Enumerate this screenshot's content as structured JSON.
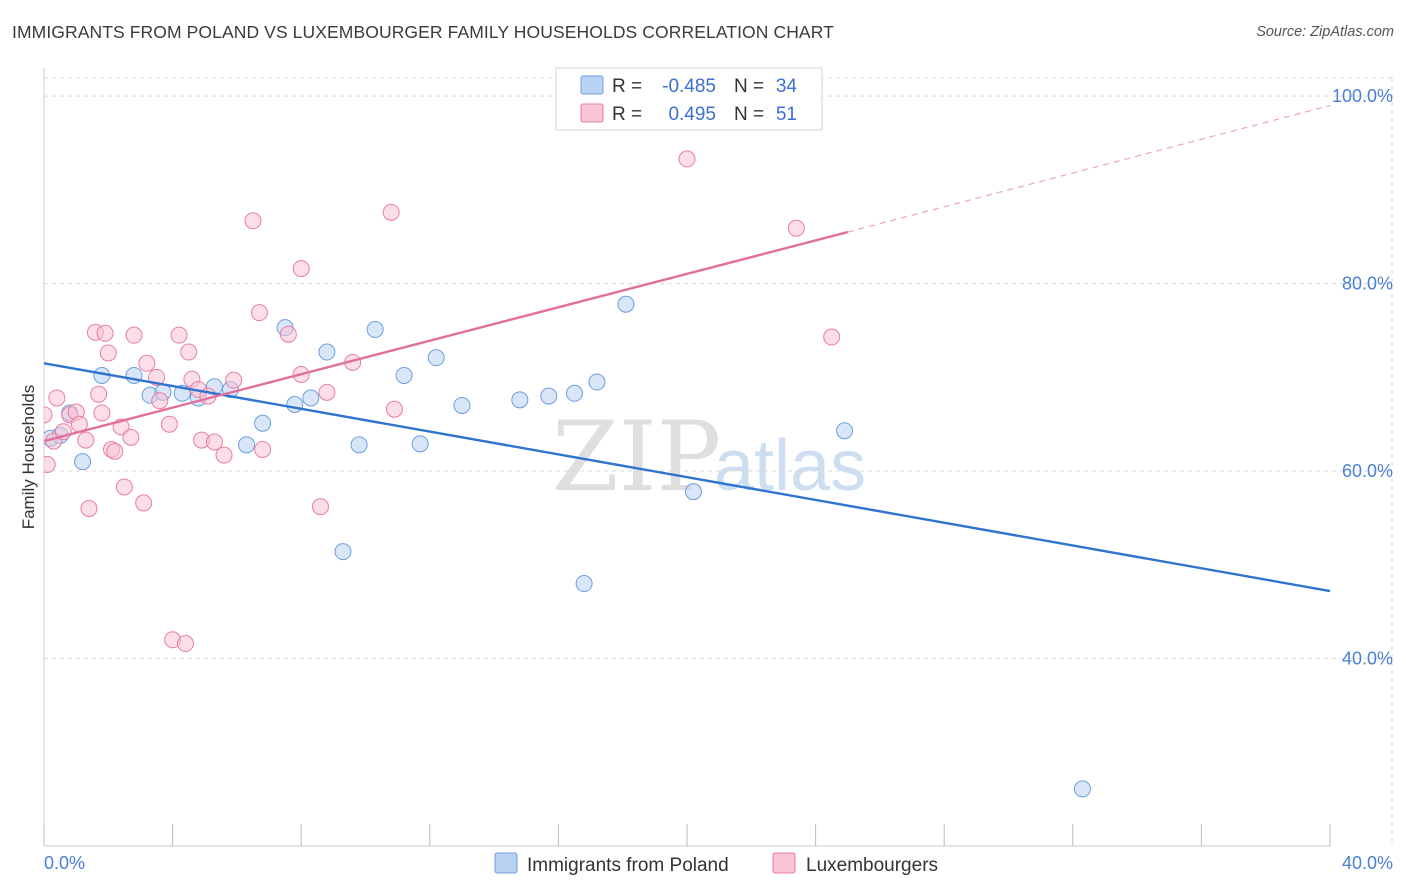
{
  "header": {
    "title": "IMMIGRANTS FROM POLAND VS LUXEMBOURGER FAMILY HOUSEHOLDS CORRELATION CHART",
    "source": "Source: ZipAtlas.com"
  },
  "watermark": {
    "zip": "ZIP",
    "atlas": "atlas"
  },
  "stats": [
    {
      "r_label": "R =",
      "r_value": "-0.485",
      "n_label": "N =",
      "n_value": "34"
    },
    {
      "r_label": "R =",
      "r_value": "0.495",
      "n_label": "N =",
      "n_value": "51"
    }
  ],
  "chart_data": {
    "type": "scatter",
    "ylabel": "Family Households",
    "xlim": [
      0,
      40
    ],
    "ylim": [
      20,
      103
    ],
    "x_tick_labels": [
      {
        "value": 0,
        "label": "0.0%"
      },
      {
        "value": 40,
        "label": "40.0%"
      }
    ],
    "y_tick_labels": [
      {
        "value": 40,
        "label": "40.0%"
      },
      {
        "value": 60,
        "label": "60.0%"
      },
      {
        "value": 80,
        "label": "80.0%"
      },
      {
        "value": 100,
        "label": "100.0%"
      }
    ],
    "grid": true,
    "legend_position": "bottom-center",
    "series": [
      {
        "name": "Immigrants from Poland",
        "color": "#6b9fde",
        "fill": "#b9d2f3",
        "trend": {
          "x": [
            0,
            40
          ],
          "y": [
            71.5,
            47.2
          ],
          "style": "solid"
        },
        "points": [
          [
            0.2,
            63.5
          ],
          [
            0.8,
            66.2
          ],
          [
            1.2,
            61.0
          ],
          [
            1.8,
            70.2
          ],
          [
            2.8,
            70.2
          ],
          [
            3.3,
            68.1
          ],
          [
            3.7,
            68.4
          ],
          [
            4.3,
            68.3
          ],
          [
            4.8,
            67.8
          ],
          [
            5.3,
            69.0
          ],
          [
            5.8,
            68.7
          ],
          [
            6.3,
            62.8
          ],
          [
            6.8,
            65.1
          ],
          [
            7.5,
            75.3
          ],
          [
            7.8,
            67.1
          ],
          [
            8.3,
            67.8
          ],
          [
            8.8,
            72.7
          ],
          [
            9.3,
            51.4
          ],
          [
            9.8,
            62.8
          ],
          [
            10.3,
            75.1
          ],
          [
            11.2,
            70.2
          ],
          [
            11.7,
            62.9
          ],
          [
            12.2,
            72.1
          ],
          [
            13.0,
            67.0
          ],
          [
            14.8,
            67.6
          ],
          [
            15.7,
            68.0
          ],
          [
            16.5,
            68.3
          ],
          [
            16.8,
            48.0
          ],
          [
            17.2,
            69.5
          ],
          [
            18.1,
            77.8
          ],
          [
            20.2,
            57.8
          ],
          [
            24.9,
            64.3
          ],
          [
            32.3,
            26.1
          ],
          [
            0.5,
            63.8
          ]
        ]
      },
      {
        "name": "Luxembourgers",
        "color": "#e77fa2",
        "fill": "#f8c3d4",
        "trend": {
          "x": [
            0,
            25
          ],
          "y": [
            63.2,
            85.5
          ],
          "style": "solid",
          "dashed_to": {
            "x": 40,
            "y": 99.0
          }
        },
        "points": [
          [
            0.1,
            60.7
          ],
          [
            0.3,
            63.2
          ],
          [
            0.4,
            67.8
          ],
          [
            0.6,
            64.2
          ],
          [
            0.8,
            66.0
          ],
          [
            1.0,
            66.3
          ],
          [
            1.1,
            65.0
          ],
          [
            1.3,
            63.3
          ],
          [
            1.4,
            56.0
          ],
          [
            1.6,
            74.8
          ],
          [
            1.7,
            68.2
          ],
          [
            1.8,
            66.2
          ],
          [
            1.9,
            74.7
          ],
          [
            2.0,
            72.6
          ],
          [
            2.1,
            62.3
          ],
          [
            2.2,
            62.1
          ],
          [
            2.4,
            64.7
          ],
          [
            2.5,
            58.3
          ],
          [
            2.7,
            63.6
          ],
          [
            2.8,
            74.5
          ],
          [
            3.1,
            56.6
          ],
          [
            3.2,
            71.5
          ],
          [
            3.5,
            70.0
          ],
          [
            3.6,
            67.5
          ],
          [
            3.9,
            65.0
          ],
          [
            4.0,
            42.0
          ],
          [
            4.2,
            74.5
          ],
          [
            4.4,
            41.6
          ],
          [
            4.5,
            72.7
          ],
          [
            4.6,
            69.8
          ],
          [
            4.8,
            68.7
          ],
          [
            4.9,
            63.3
          ],
          [
            5.1,
            68.0
          ],
          [
            5.3,
            63.1
          ],
          [
            5.6,
            61.7
          ],
          [
            5.9,
            69.7
          ],
          [
            6.5,
            86.7
          ],
          [
            6.7,
            76.9
          ],
          [
            6.8,
            62.3
          ],
          [
            7.6,
            74.6
          ],
          [
            8.0,
            81.6
          ],
          [
            8.0,
            70.3
          ],
          [
            8.6,
            56.2
          ],
          [
            8.8,
            68.4
          ],
          [
            9.6,
            71.6
          ],
          [
            10.8,
            87.6
          ],
          [
            10.9,
            66.6
          ],
          [
            20.0,
            93.3
          ],
          [
            23.4,
            85.9
          ],
          [
            24.5,
            74.3
          ],
          [
            0.0,
            66.0
          ]
        ]
      }
    ]
  }
}
